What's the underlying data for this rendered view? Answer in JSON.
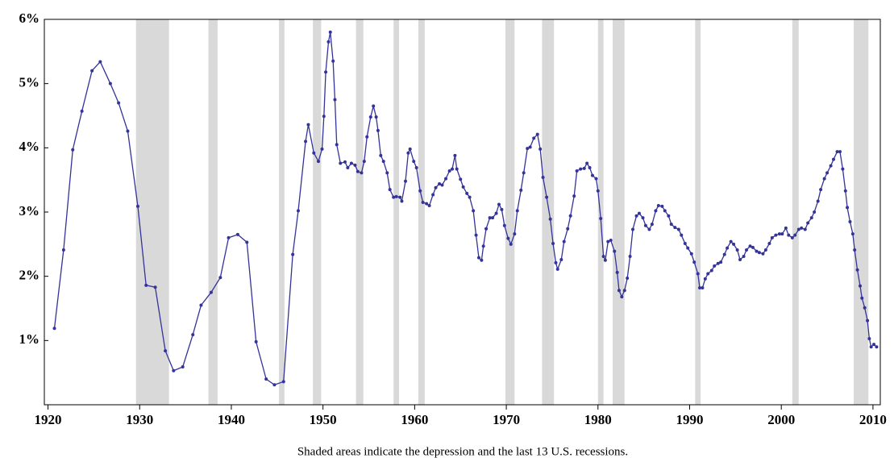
{
  "chart_data": {
    "type": "line",
    "caption": "Shaded areas indicate the depression and the last 13 U.S. recessions.",
    "color": "#333399",
    "shade_color": "#d9d9d9",
    "shaded_ranges": [
      [
        1929.6,
        1933.2
      ],
      [
        1937.5,
        1938.5
      ],
      [
        1945.2,
        1945.8
      ],
      [
        1948.9,
        1949.8
      ],
      [
        1953.6,
        1954.4
      ],
      [
        1957.7,
        1958.3
      ],
      [
        1960.4,
        1961.1
      ],
      [
        1969.9,
        1970.9
      ],
      [
        1973.9,
        1975.2
      ],
      [
        1980.0,
        1980.6
      ],
      [
        1981.6,
        1982.9
      ],
      [
        1990.6,
        1991.2
      ],
      [
        2001.2,
        2001.9
      ],
      [
        2007.9,
        2009.5
      ]
    ],
    "x": [
      1920.7,
      1921.7,
      1922.7,
      1923.7,
      1924.8,
      1925.7,
      1926.8,
      1927.7,
      1928.7,
      1929.8,
      1930.7,
      1931.7,
      1932.8,
      1933.7,
      1934.7,
      1935.8,
      1936.7,
      1937.8,
      1938.8,
      1939.7,
      1940.7,
      1941.7,
      1942.7,
      1943.8,
      1944.7,
      1945.7,
      1946.7,
      1947.3,
      1948.1,
      1948.4,
      1949.0,
      1949.5,
      1949.9,
      1950.1,
      1950.3,
      1950.6,
      1950.8,
      1951.1,
      1951.3,
      1951.5,
      1951.9,
      1952.4,
      1952.7,
      1953.1,
      1953.5,
      1953.8,
      1954.2,
      1954.5,
      1954.8,
      1955.2,
      1955.5,
      1955.8,
      1956.0,
      1956.3,
      1956.6,
      1957.0,
      1957.3,
      1957.7,
      1958.0,
      1958.4,
      1958.6,
      1959.0,
      1959.3,
      1959.5,
      1959.9,
      1960.2,
      1960.6,
      1960.9,
      1961.3,
      1961.6,
      1962.0,
      1962.3,
      1962.7,
      1963.0,
      1963.4,
      1963.8,
      1964.1,
      1964.4,
      1964.6,
      1965.0,
      1965.3,
      1965.7,
      1966.0,
      1966.4,
      1966.7,
      1967.0,
      1967.3,
      1967.5,
      1967.8,
      1968.2,
      1968.5,
      1968.9,
      1969.2,
      1969.5,
      1969.8,
      1970.2,
      1970.5,
      1970.9,
      1971.2,
      1971.6,
      1971.9,
      1972.3,
      1972.6,
      1973.0,
      1973.4,
      1973.7,
      1974.0,
      1974.4,
      1974.8,
      1975.1,
      1975.4,
      1975.6,
      1976.0,
      1976.3,
      1976.7,
      1977.0,
      1977.4,
      1977.7,
      1978.1,
      1978.5,
      1978.8,
      1979.1,
      1979.4,
      1979.8,
      1980.0,
      1980.3,
      1980.6,
      1980.8,
      1981.1,
      1981.4,
      1981.8,
      1982.1,
      1982.3,
      1982.6,
      1982.9,
      1983.2,
      1983.5,
      1983.8,
      1984.2,
      1984.5,
      1984.9,
      1985.2,
      1985.6,
      1985.9,
      1986.3,
      1986.6,
      1987.0,
      1987.3,
      1987.7,
      1988.0,
      1988.4,
      1988.8,
      1989.1,
      1989.5,
      1989.8,
      1990.2,
      1990.5,
      1990.9,
      1991.1,
      1991.4,
      1991.7,
      1992.0,
      1992.4,
      1992.7,
      1993.1,
      1993.4,
      1993.8,
      1994.1,
      1994.5,
      1994.8,
      1995.2,
      1995.5,
      1995.9,
      1996.2,
      1996.6,
      1996.9,
      1997.3,
      1997.6,
      1998.0,
      1998.3,
      1998.7,
      1999.0,
      1999.4,
      1999.8,
      2000.1,
      2000.5,
      2000.8,
      2001.2,
      2001.5,
      2001.9,
      2002.2,
      2002.6,
      2002.9,
      2003.3,
      2003.6,
      2004.0,
      2004.3,
      2004.7,
      2005.0,
      2005.4,
      2005.7,
      2006.1,
      2006.4,
      2006.7,
      2007.0,
      2007.2,
      2007.5,
      2007.8,
      2008.0,
      2008.3,
      2008.6,
      2008.8,
      2009.1,
      2009.4,
      2009.6,
      2009.8,
      2010.1,
      2010.4
    ],
    "values": [
      1.19,
      2.41,
      3.97,
      4.57,
      5.2,
      5.34,
      5.0,
      4.7,
      4.26,
      3.09,
      1.86,
      1.83,
      0.84,
      0.53,
      0.59,
      1.09,
      1.55,
      1.75,
      1.98,
      2.6,
      2.65,
      2.53,
      0.98,
      0.4,
      0.31,
      0.36,
      2.34,
      3.02,
      4.1,
      4.36,
      3.92,
      3.79,
      3.98,
      4.49,
      5.18,
      5.65,
      5.8,
      5.35,
      4.75,
      4.05,
      3.76,
      3.78,
      3.69,
      3.76,
      3.73,
      3.63,
      3.61,
      3.79,
      4.17,
      4.48,
      4.65,
      4.48,
      4.27,
      3.88,
      3.79,
      3.61,
      3.35,
      3.23,
      3.24,
      3.23,
      3.17,
      3.48,
      3.92,
      3.98,
      3.79,
      3.69,
      3.33,
      3.15,
      3.13,
      3.1,
      3.27,
      3.38,
      3.44,
      3.42,
      3.52,
      3.64,
      3.67,
      3.88,
      3.67,
      3.51,
      3.39,
      3.29,
      3.23,
      3.02,
      2.64,
      2.29,
      2.25,
      2.47,
      2.74,
      2.91,
      2.91,
      2.98,
      3.12,
      3.04,
      2.79,
      2.59,
      2.5,
      2.66,
      3.02,
      3.34,
      3.61,
      3.99,
      4.01,
      4.15,
      4.21,
      3.98,
      3.54,
      3.23,
      2.89,
      2.51,
      2.21,
      2.11,
      2.26,
      2.54,
      2.74,
      2.94,
      3.25,
      3.64,
      3.67,
      3.68,
      3.76,
      3.69,
      3.57,
      3.52,
      3.33,
      2.9,
      2.31,
      2.25,
      2.54,
      2.56,
      2.39,
      2.06,
      1.78,
      1.68,
      1.78,
      1.97,
      2.31,
      2.73,
      2.94,
      2.98,
      2.91,
      2.79,
      2.73,
      2.81,
      3.02,
      3.1,
      3.09,
      3.02,
      2.94,
      2.81,
      2.76,
      2.73,
      2.64,
      2.51,
      2.44,
      2.35,
      2.22,
      2.04,
      1.82,
      1.82,
      1.96,
      2.04,
      2.09,
      2.16,
      2.2,
      2.22,
      2.34,
      2.44,
      2.54,
      2.5,
      2.41,
      2.26,
      2.31,
      2.41,
      2.47,
      2.45,
      2.39,
      2.37,
      2.35,
      2.41,
      2.51,
      2.6,
      2.64,
      2.66,
      2.66,
      2.75,
      2.64,
      2.6,
      2.64,
      2.73,
      2.75,
      2.73,
      2.83,
      2.91,
      3.0,
      3.17,
      3.35,
      3.52,
      3.61,
      3.72,
      3.82,
      3.94,
      3.94,
      3.67,
      3.33,
      3.07,
      2.85,
      2.66,
      2.41,
      2.1,
      1.85,
      1.66,
      1.51,
      1.31,
      1.03,
      0.9,
      0.94,
      0.9
    ],
    "xlim": [
      1919.6,
      2010.8
    ],
    "ylim": [
      0,
      6
    ],
    "xticks": [
      1920,
      1930,
      1940,
      1950,
      1960,
      1970,
      1980,
      1990,
      2000,
      2010
    ],
    "yticks": [
      {
        "value": 1,
        "label": "1%"
      },
      {
        "value": 2,
        "label": "2%"
      },
      {
        "value": 3,
        "label": "3%"
      },
      {
        "value": 4,
        "label": "4%"
      },
      {
        "value": 5,
        "label": "5%"
      },
      {
        "value": 6,
        "label": "6%"
      }
    ]
  }
}
